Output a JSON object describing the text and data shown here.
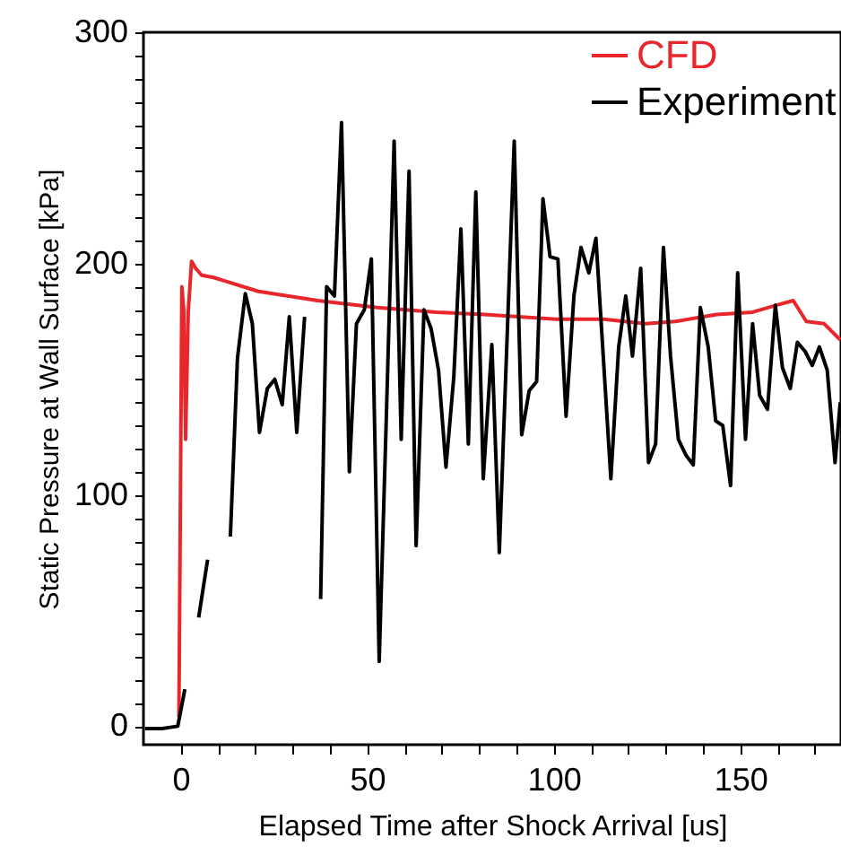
{
  "chart_data": {
    "type": "line",
    "xlabel": "Elapsed Time after Shock Arrival [us]",
    "ylabel": "Static Pressure at Wall Surface [kPa]",
    "xlim": [
      -10,
      177
    ],
    "ylim": [
      -8,
      300
    ],
    "xticks": [
      0,
      {
        "value": 10,
        "label": null
      },
      {
        "value": 20,
        "label": null
      },
      {
        "value": 30,
        "label": null
      },
      {
        "value": 40,
        "label": null
      },
      50,
      {
        "value": 60,
        "label": null
      },
      {
        "value": 70,
        "label": null
      },
      {
        "value": 80,
        "label": null
      },
      {
        "value": 90,
        "label": null
      },
      100,
      {
        "value": 110,
        "label": null
      },
      {
        "value": 120,
        "label": null
      },
      {
        "value": 130,
        "label": null
      },
      {
        "value": 140,
        "label": null
      },
      150,
      {
        "value": 160,
        "label": null
      },
      {
        "value": 170,
        "label": null
      }
    ],
    "yticks": [
      0,
      {
        "value": 10,
        "label": null
      },
      {
        "value": 20,
        "label": null
      },
      {
        "value": 30,
        "label": null
      },
      {
        "value": 40,
        "label": null
      },
      {
        "value": 50,
        "label": null
      },
      {
        "value": 60,
        "label": null
      },
      {
        "value": 70,
        "label": null
      },
      {
        "value": 80,
        "label": null
      },
      {
        "value": 90,
        "label": null
      },
      100,
      {
        "value": 110,
        "label": null
      },
      {
        "value": 120,
        "label": null
      },
      {
        "value": 130,
        "label": null
      },
      {
        "value": 140,
        "label": null
      },
      {
        "value": 150,
        "label": null
      },
      {
        "value": 160,
        "label": null
      },
      {
        "value": 170,
        "label": null
      },
      {
        "value": 180,
        "label": null
      },
      {
        "value": 190,
        "label": null
      },
      200,
      {
        "value": 210,
        "label": null
      },
      {
        "value": 220,
        "label": null
      },
      {
        "value": 230,
        "label": null
      },
      {
        "value": 240,
        "label": null
      },
      {
        "value": 250,
        "label": null
      },
      {
        "value": 260,
        "label": null
      },
      {
        "value": 270,
        "label": null
      },
      {
        "value": 280,
        "label": null
      },
      {
        "value": 290,
        "label": null
      },
      300
    ],
    "legend": "top right",
    "grid": false,
    "marker": "none",
    "line_style": "solid",
    "series": [
      {
        "name": "CFD",
        "color": "#e8262c",
        "x": [
          -0.5,
          0.3,
          0.8,
          1.3,
          2.0,
          2.9,
          4.0,
          5.6,
          8.8,
          20.8,
          36.7,
          52.7,
          68.6,
          81.4,
          100.6,
          113.4,
          124.6,
          132.6,
          143.7,
          153.3,
          159.7,
          164.2,
          167.7,
          172.5,
          176.8
        ],
        "values": [
          4,
          190,
          180,
          124,
          179,
          201,
          198,
          195,
          194,
          188,
          184,
          181,
          179,
          178,
          176,
          176,
          174,
          175,
          178,
          179,
          182,
          184,
          175,
          174,
          167
        ]
      },
      {
        "name": "Experiment",
        "color": "#000000",
        "x": [
          -9.6,
          -5,
          -0.8,
          1.1,
          3.2,
          4.8,
          7.2,
          10.4,
          13.3,
          15.2,
          17.3,
          19.2,
          21.1,
          23.2,
          25.2,
          27.2,
          29.1,
          31.1,
          33.2,
          35.5,
          37.5,
          39.1,
          41.2,
          43.1,
          45.2,
          47.1,
          49.2,
          51.1,
          53.2,
          55.1,
          57.2,
          59.1,
          61.2,
          63.1,
          65.2,
          67.1,
          69.1,
          71.1,
          73.2,
          75.1,
          77.1,
          79.1,
          81.1,
          83.4,
          85.4,
          89.4,
          91.4,
          93.4,
          95.4,
          97.1,
          99.0,
          101.1,
          103.3,
          105.4,
          107.3,
          109.4,
          111.3,
          115.3,
          117.4,
          119.3,
          121.1,
          123.3,
          125.4,
          127.3,
          129.4,
          131.3,
          133.4,
          135.5,
          137.4,
          139.3,
          141.4,
          143.4,
          145.3,
          147.4,
          149.3,
          151.4,
          153.3,
          155.2,
          157.3,
          159.4,
          161.3,
          163.4,
          165.3,
          167.4,
          169.3,
          171.2,
          173.3,
          175.4,
          176.8
        ],
        "values": [
          -1,
          -1,
          0,
          16,
          null,
          47,
          72,
          null,
          82,
          159,
          187,
          174,
          127,
          146,
          150,
          139,
          177,
          127,
          177,
          null,
          55,
          190,
          186,
          261,
          110,
          174,
          180,
          202,
          28,
          133,
          253,
          124,
          240,
          78,
          180,
          172,
          154,
          112,
          151,
          215,
          122,
          231,
          107,
          165,
          75,
          253,
          126,
          145,
          149,
          228,
          203,
          202,
          134,
          186,
          207,
          196,
          211,
          107,
          164,
          186,
          160,
          198,
          114,
          122,
          207,
          160,
          124,
          117,
          113,
          181,
          164,
          132,
          130,
          104,
          196,
          124,
          174,
          143,
          137,
          182,
          155,
          146,
          166,
          162,
          156,
          164,
          154,
          114,
          140
        ]
      }
    ]
  }
}
